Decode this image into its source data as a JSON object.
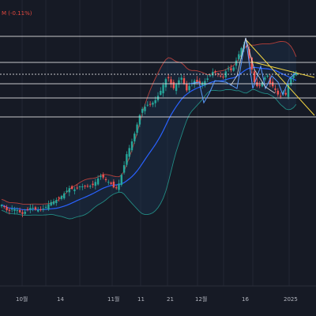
{
  "header": {
    "indicator_readout": "M (-0.11%)"
  },
  "colors": {
    "background": "#161a25",
    "grid": "#232734",
    "up_candle": "#26a69a",
    "down_candle": "#ef5350",
    "basis_line": "#2962ff",
    "upper_band": "#e0483e",
    "lower_band": "#26a69a",
    "band_fill": "#1c3a55",
    "level_line": "#e6e6e6",
    "trend_line": "#f5d742",
    "pattern_line": "#5b9bff"
  },
  "time_axis": {
    "labels": [
      "10월",
      "14",
      "11월",
      "11",
      "21",
      "12월",
      "16",
      "2025"
    ]
  },
  "horizontal_levels": [
    {
      "name": "level-1",
      "dashed": false
    },
    {
      "name": "level-2",
      "dashed": false
    },
    {
      "name": "level-3",
      "dashed": true
    },
    {
      "name": "level-4",
      "dashed": false
    },
    {
      "name": "level-5",
      "dashed": false
    },
    {
      "name": "level-6",
      "dashed": false
    }
  ]
}
